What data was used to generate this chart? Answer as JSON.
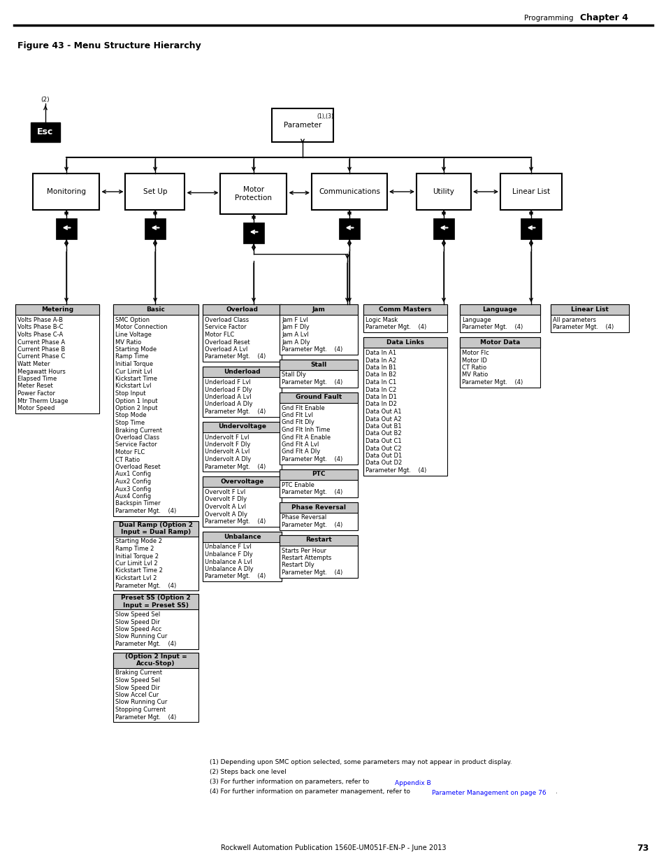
{
  "bg_color": "#ffffff",
  "metering_items": [
    "Volts Phase A-B",
    "Volts Phase B-C",
    "Volts Phase C-A",
    "Current Phase A",
    "Current Phase B",
    "Current Phase C",
    "Watt Meter",
    "Megawatt Hours",
    "Elapsed Time",
    "Meter Reset",
    "Power Factor",
    "Mtr Therm Usage",
    "Motor Speed"
  ],
  "basic_items": [
    "SMC Option",
    "Motor Connection",
    "Line Voltage",
    "MV Ratio",
    "Starting Mode",
    "Ramp Time",
    "Initial Torque",
    "Cur Limit Lvl",
    "Kickstart Time",
    "Kickstart Lvl",
    "Stop Input",
    "Option 1 Input",
    "Option 2 Input",
    "Stop Mode",
    "Stop Time",
    "Braking Current",
    "Overload Class",
    "Service Factor",
    "Motor FLC",
    "CT Ratio",
    "Overload Reset",
    "Aux1 Config",
    "Aux2 Config",
    "Aux3 Config",
    "Aux4 Config",
    "Backspin Timer",
    "Parameter Mgt.    (4)"
  ],
  "overload_items": [
    "Overload Class",
    "Service Factor",
    "Motor FLC",
    "Overload Reset",
    "Overload A Lvl",
    "Parameter Mgt.    (4)"
  ],
  "underload_items": [
    "Underload F Lvl",
    "Underload F Dly",
    "Underload A Lvl",
    "Underload A Dly",
    "Parameter Mgt.    (4)"
  ],
  "undervoltage_items": [
    "Undervolt F Lvl",
    "Undervolt F Dly",
    "Undervolt A Lvl",
    "Undervolt A Dly",
    "Parameter Mgt.    (4)"
  ],
  "overvoltage_items": [
    "Overvolt F Lvl",
    "Overvolt F Dly",
    "Overvolt A Lvl",
    "Overvolt A Dly",
    "Parameter Mgt.    (4)"
  ],
  "unbalance_items": [
    "Unbalance F Lvl",
    "Unbalance F Dly",
    "Unbalance A Lvl",
    "Unbalance A Dly",
    "Parameter Mgt.    (4)"
  ],
  "jam_items": [
    "Jam F Lvl",
    "Jam F Dly",
    "Jam A Lvl",
    "Jam A Dly",
    "Parameter Mgt.    (4)"
  ],
  "stall_items": [
    "Stall Dly",
    "Parameter Mgt.    (4)"
  ],
  "ground_fault_items": [
    "Gnd Flt Enable",
    "Gnd Flt Lvl",
    "Gnd Flt Dly",
    "Gnd Flt Inh Time",
    "Gnd Flt A Enable",
    "Gnd Flt A Lvl",
    "Gnd Flt A Dly",
    "Parameter Mgt.    (4)"
  ],
  "ptc_items": [
    "PTC Enable",
    "Parameter Mgt.    (4)"
  ],
  "phase_reversal_items": [
    "Phase Reversal",
    "Parameter Mgt.    (4)"
  ],
  "restart_items": [
    "Starts Per Hour",
    "Restart Attempts",
    "Restart Dly",
    "Parameter Mgt.    (4)"
  ],
  "comm_masters_items": [
    "Logic Mask",
    "Parameter Mgt.    (4)"
  ],
  "data_links_items": [
    "Data In A1",
    "Data In A2",
    "Data In B1",
    "Data In B2",
    "Data In C1",
    "Data In C2",
    "Data In D1",
    "Data In D2",
    "Data Out A1",
    "Data Out A2",
    "Data Out B1",
    "Data Out B2",
    "Data Out C1",
    "Data Out C2",
    "Data Out D1",
    "Data Out D2",
    "Parameter Mgt.    (4)"
  ],
  "language_items": [
    "Language",
    "Parameter Mgt.    (4)"
  ],
  "motor_data_items": [
    "Motor Flc",
    "Motor ID",
    "CT Ratio",
    "MV Ratio",
    "Parameter Mgt.    (4)"
  ],
  "linear_list_items": [
    "All parameters",
    "Parameter Mgt.    (4)"
  ],
  "dual_ramp_items": [
    "Starting Mode 2",
    "Ramp Time 2",
    "Initial Torque 2",
    "Cur Limit Lvl 2",
    "Kickstart Time 2",
    "Kickstart Lvl 2",
    "Parameter Mgt.    (4)"
  ],
  "preset_ss_items": [
    "Slow Speed Sel",
    "Slow Speed Dir",
    "Slow Speed Acc",
    "Slow Running Cur",
    "Parameter Mgt.    (4)"
  ],
  "accu_stop_items": [
    "Braking Current",
    "Slow Speed Sel",
    "Slow Speed Dir",
    "Slow Accel Cur",
    "Slow Running Cur",
    "Stopping Current",
    "Parameter Mgt.    (4)"
  ],
  "note1": "(1) Depending upon SMC option selected, some parameters may not appear in product display.",
  "note2": "(2) Steps back one level",
  "note3": "(3) For further information on parameters, refer to Appendix B.",
  "note4": "(4) For further information on parameter management, refer to Parameter Management on page 76.",
  "note3_link": "Appendix B",
  "note4_link": "Parameter Management on page 76",
  "footer": "Rockwell Automation Publication 1560E-UM051F-EN-P - June 2013",
  "page_num": "73",
  "header_label": "Programming",
  "header_chapter": "Chapter 4",
  "title": "Figure 43 - Menu Structure Hierarchy"
}
